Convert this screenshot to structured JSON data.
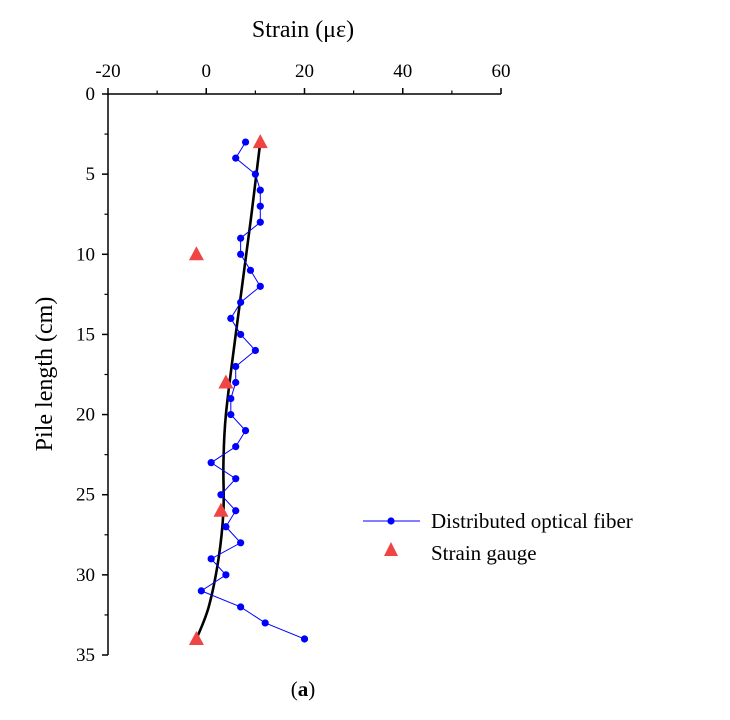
{
  "chart_data": {
    "type": "line",
    "xlabel": "Strain (με)",
    "ylabel": "Pile length (cm)",
    "xlim": [
      -20,
      60
    ],
    "ylim": [
      35,
      0
    ],
    "x_axis_position": "top",
    "y_inverted": true,
    "x_ticks": [
      "-20",
      "0",
      "20",
      "40",
      "60"
    ],
    "y_ticks": [
      "0",
      "5",
      "10",
      "15",
      "20",
      "25",
      "30",
      "35"
    ],
    "grid": false,
    "legend_position": "lower-right",
    "caption_open": "(",
    "caption_letter": "a",
    "caption_close": ")",
    "series": [
      {
        "name": "Distributed optical fiber",
        "type": "line-marker",
        "color": "#0000ff",
        "marker": "circle",
        "points": [
          {
            "x": 8,
            "y": 3
          },
          {
            "x": 6,
            "y": 4
          },
          {
            "x": 10,
            "y": 5
          },
          {
            "x": 11,
            "y": 6
          },
          {
            "x": 11,
            "y": 7
          },
          {
            "x": 11,
            "y": 8
          },
          {
            "x": 7,
            "y": 9
          },
          {
            "x": 7,
            "y": 10
          },
          {
            "x": 9,
            "y": 11
          },
          {
            "x": 11,
            "y": 12
          },
          {
            "x": 7,
            "y": 13
          },
          {
            "x": 5,
            "y": 14
          },
          {
            "x": 7,
            "y": 15
          },
          {
            "x": 10,
            "y": 16
          },
          {
            "x": 6,
            "y": 17
          },
          {
            "x": 6,
            "y": 18
          },
          {
            "x": 5,
            "y": 19
          },
          {
            "x": 5,
            "y": 20
          },
          {
            "x": 8,
            "y": 21
          },
          {
            "x": 6,
            "y": 22
          },
          {
            "x": 1,
            "y": 23
          },
          {
            "x": 6,
            "y": 24
          },
          {
            "x": 3,
            "y": 25
          },
          {
            "x": 6,
            "y": 26
          },
          {
            "x": 4,
            "y": 27
          },
          {
            "x": 7,
            "y": 28
          },
          {
            "x": 1,
            "y": 29
          },
          {
            "x": 4,
            "y": 30
          },
          {
            "x": -1,
            "y": 31
          },
          {
            "x": 7,
            "y": 32
          },
          {
            "x": 12,
            "y": 33
          },
          {
            "x": 20,
            "y": 34
          }
        ]
      },
      {
        "name": "Strain gauge",
        "type": "marker",
        "color": "#f04545",
        "marker": "triangle",
        "points": [
          {
            "x": 11,
            "y": 3
          },
          {
            "x": -2,
            "y": 10
          },
          {
            "x": 4,
            "y": 18
          },
          {
            "x": 3,
            "y": 26
          },
          {
            "x": -2,
            "y": 34
          }
        ]
      },
      {
        "type": "curve",
        "color": "#000000",
        "points": [
          {
            "x": 11,
            "y": 3
          },
          {
            "x": 9,
            "y": 8
          },
          {
            "x": 6,
            "y": 15
          },
          {
            "x": 4,
            "y": 20
          },
          {
            "x": 3.5,
            "y": 23
          },
          {
            "x": 3.5,
            "y": 26
          },
          {
            "x": 2.5,
            "y": 29
          },
          {
            "x": 0.5,
            "y": 32
          },
          {
            "x": -2,
            "y": 34
          }
        ]
      }
    ]
  }
}
